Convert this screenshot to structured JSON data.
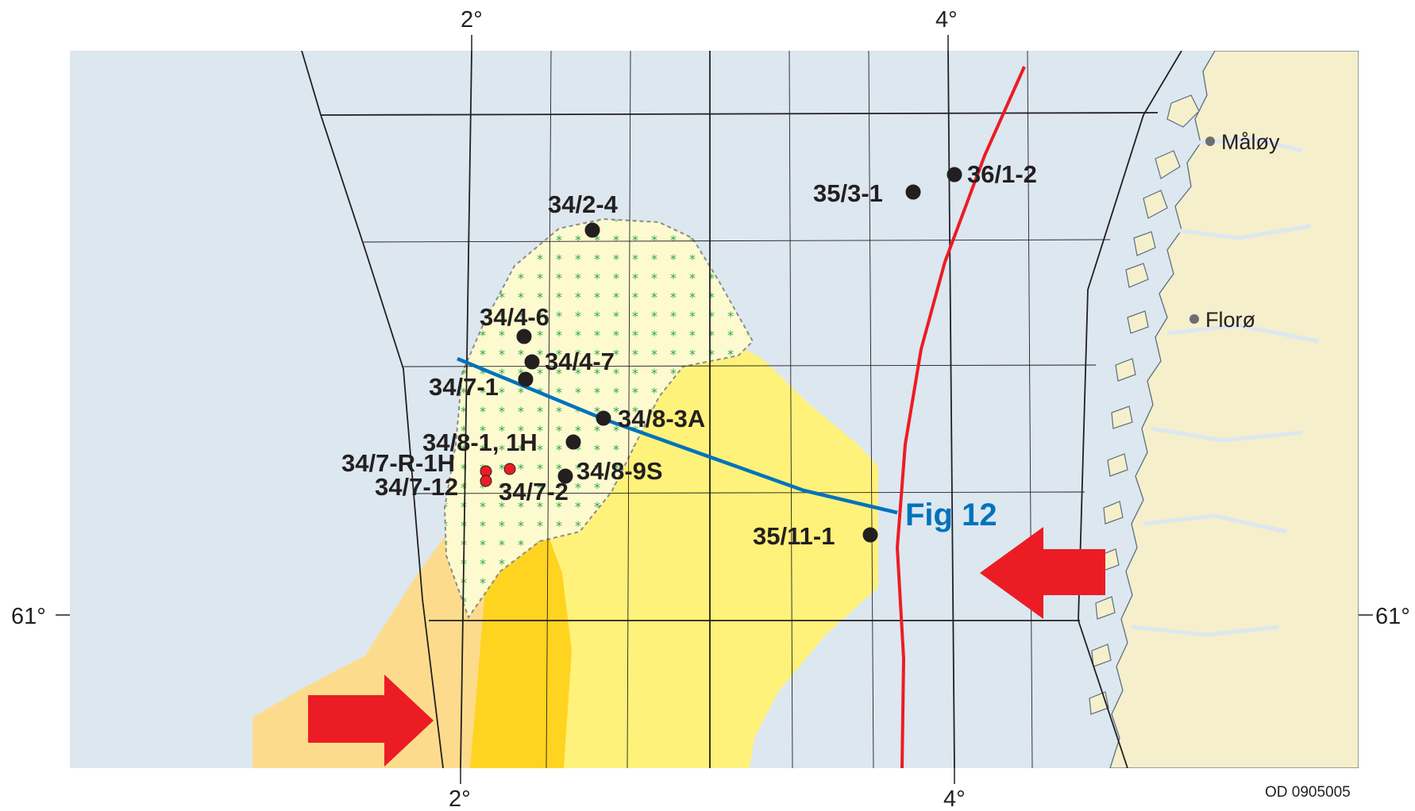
{
  "colors": {
    "sea": "#dce7f0",
    "land": "#f6efcc",
    "coastline": "#5a6f7d",
    "grid": "#231f20",
    "light_yellow": "#fff27a",
    "pale_fill": "#fdfad0",
    "orange_fill": "#fcdc8c",
    "deep_yellow": "#ffd420",
    "red": "#ec1c24",
    "blue": "#0072bc",
    "well": "#231f20",
    "hatch": "#2aa84a"
  },
  "graticule": {
    "top_left_lon": "2°",
    "top_right_lon": "4°",
    "bottom_left_lon": "2°",
    "bottom_right_lon": "4°",
    "left_lat": "61°",
    "right_lat": "61°"
  },
  "wells": [
    {
      "name": "34/2-4"
    },
    {
      "name": "35/3-1"
    },
    {
      "name": "36/1-2"
    },
    {
      "name": "34/4-6"
    },
    {
      "name": "34/4-7"
    },
    {
      "name": "34/7-1"
    },
    {
      "name": "34/8-3A"
    },
    {
      "name": "34/8-1, 1H"
    },
    {
      "name": "34/7-R-1H"
    },
    {
      "name": "34/7-12"
    },
    {
      "name": "34/8-9S"
    },
    {
      "name": "34/7-2"
    },
    {
      "name": "35/11-1"
    }
  ],
  "towns": [
    {
      "name": "Måløy"
    },
    {
      "name": "Florø"
    }
  ],
  "profile": {
    "label": "Fig 12"
  },
  "source_code": "OD 0905005"
}
